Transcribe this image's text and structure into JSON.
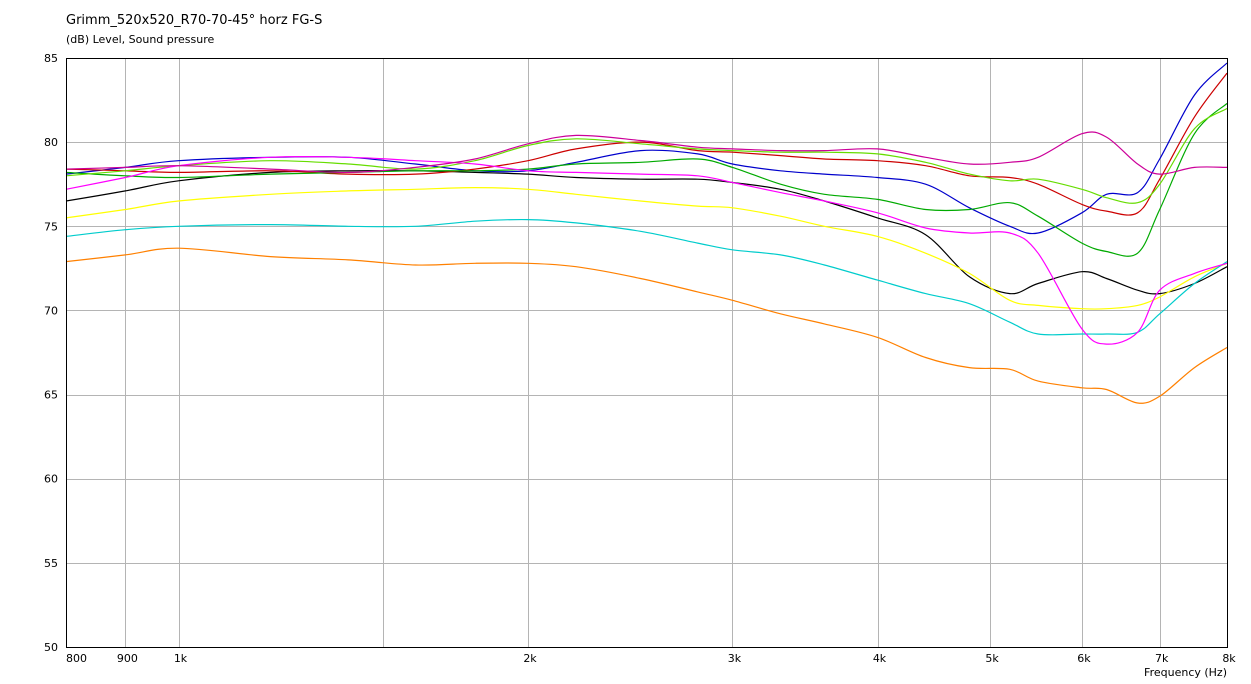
{
  "chart_data": {
    "type": "line",
    "title": "Grimm_520x520_R70-70-45° horz FG-S",
    "subtitle": "(dB)  Level, Sound pressure",
    "xlabel": "Frequency  (Hz)",
    "ylabel": "",
    "x_scale": "log",
    "xlim": [
      800,
      8000
    ],
    "ylim": [
      50,
      85
    ],
    "grid": true,
    "legend": "none",
    "x_ticks": [
      {
        "value": 800,
        "label": "800"
      },
      {
        "value": 900,
        "label": "900"
      },
      {
        "value": 1000,
        "label": "1k"
      },
      {
        "value": 2000,
        "label": "2k"
      },
      {
        "value": 3000,
        "label": "3k"
      },
      {
        "value": 4000,
        "label": "4k"
      },
      {
        "value": 5000,
        "label": "5k"
      },
      {
        "value": 6000,
        "label": "6k"
      },
      {
        "value": 7000,
        "label": "7k"
      },
      {
        "value": 8000,
        "label": "8k"
      }
    ],
    "x_minor_grid": [
      1500
    ],
    "y_ticks": [
      {
        "value": 50,
        "label": "50"
      },
      {
        "value": 55,
        "label": "55"
      },
      {
        "value": 60,
        "label": "60"
      },
      {
        "value": 65,
        "label": "65"
      },
      {
        "value": 70,
        "label": "70"
      },
      {
        "value": 75,
        "label": "75"
      },
      {
        "value": 80,
        "label": "80"
      },
      {
        "value": 85,
        "label": "85"
      }
    ],
    "x": [
      800,
      900,
      1000,
      1200,
      1400,
      1600,
      1800,
      2000,
      2200,
      2500,
      2800,
      3000,
      3300,
      3600,
      4000,
      4400,
      4800,
      5200,
      5500,
      6000,
      6300,
      6700,
      7000,
      7500,
      8000
    ],
    "series": [
      {
        "color": "#000000",
        "values": [
          76.5,
          77.1,
          77.7,
          78.2,
          78.3,
          78.3,
          78.2,
          78.1,
          77.9,
          77.8,
          77.8,
          77.6,
          77.2,
          76.5,
          75.5,
          74.5,
          72.0,
          71.0,
          71.6,
          72.3,
          71.9,
          71.2,
          71.0,
          71.6,
          72.6
        ]
      },
      {
        "color": "#ffff00",
        "values": [
          75.5,
          76.0,
          76.5,
          76.9,
          77.1,
          77.2,
          77.3,
          77.2,
          76.9,
          76.5,
          76.2,
          76.1,
          75.6,
          75.0,
          74.4,
          73.4,
          72.2,
          70.6,
          70.3,
          70.1,
          70.1,
          70.3,
          70.8,
          72.0,
          72.8
        ]
      },
      {
        "color": "#00cccc",
        "values": [
          74.4,
          74.8,
          75.0,
          75.1,
          75.0,
          75.0,
          75.3,
          75.4,
          75.2,
          74.7,
          74.0,
          73.6,
          73.3,
          72.7,
          71.8,
          71.0,
          70.4,
          69.3,
          68.6,
          68.6,
          68.6,
          68.7,
          69.8,
          71.6,
          72.9
        ]
      },
      {
        "color": "#ff8000",
        "values": [
          72.9,
          73.3,
          73.7,
          73.2,
          73.0,
          72.7,
          72.8,
          72.8,
          72.6,
          71.9,
          71.1,
          70.6,
          69.8,
          69.2,
          68.4,
          67.2,
          66.6,
          66.5,
          65.8,
          65.4,
          65.3,
          64.5,
          64.9,
          66.6,
          67.8
        ]
      },
      {
        "color": "#0000cc",
        "values": [
          78.1,
          78.5,
          78.9,
          79.1,
          79.1,
          78.7,
          78.3,
          78.3,
          78.8,
          79.5,
          79.3,
          78.7,
          78.3,
          78.1,
          77.9,
          77.5,
          76.1,
          75.0,
          74.6,
          75.8,
          76.9,
          77.0,
          79.0,
          82.8,
          84.7
        ]
      },
      {
        "color": "#cc0000",
        "values": [
          78.4,
          78.3,
          78.2,
          78.3,
          78.1,
          78.1,
          78.4,
          78.9,
          79.6,
          80.0,
          79.5,
          79.4,
          79.2,
          79.0,
          78.9,
          78.6,
          78.0,
          77.9,
          77.5,
          76.3,
          75.9,
          75.8,
          77.8,
          81.5,
          84.1
        ]
      },
      {
        "color": "#00aa00",
        "values": [
          78.2,
          78.0,
          77.9,
          78.1,
          78.2,
          78.3,
          78.3,
          78.4,
          78.7,
          78.8,
          79.0,
          78.5,
          77.5,
          76.9,
          76.6,
          76.0,
          76.0,
          76.4,
          75.6,
          74.0,
          73.5,
          73.4,
          76.0,
          80.5,
          82.3
        ]
      },
      {
        "color": "#66dd00",
        "values": [
          78.0,
          78.3,
          78.6,
          78.9,
          78.7,
          78.4,
          78.9,
          79.8,
          80.2,
          79.9,
          79.6,
          79.5,
          79.4,
          79.4,
          79.3,
          78.8,
          78.1,
          77.7,
          77.8,
          77.2,
          76.7,
          76.4,
          77.5,
          80.8,
          82.0
        ]
      },
      {
        "color": "#ff00ff",
        "values": [
          77.2,
          77.9,
          78.6,
          79.1,
          79.1,
          78.9,
          78.7,
          78.3,
          78.2,
          78.1,
          78.0,
          77.6,
          77.0,
          76.5,
          75.8,
          74.9,
          74.6,
          74.6,
          73.4,
          68.9,
          68.0,
          68.7,
          71.2,
          72.2,
          72.8
        ]
      },
      {
        "color": "#cc0099",
        "values": [
          78.4,
          78.5,
          78.6,
          78.4,
          78.2,
          78.5,
          79.0,
          79.9,
          80.4,
          80.1,
          79.7,
          79.6,
          79.5,
          79.5,
          79.6,
          79.1,
          78.7,
          78.8,
          79.1,
          80.5,
          80.3,
          78.7,
          78.1,
          78.5,
          78.5
        ]
      }
    ]
  }
}
